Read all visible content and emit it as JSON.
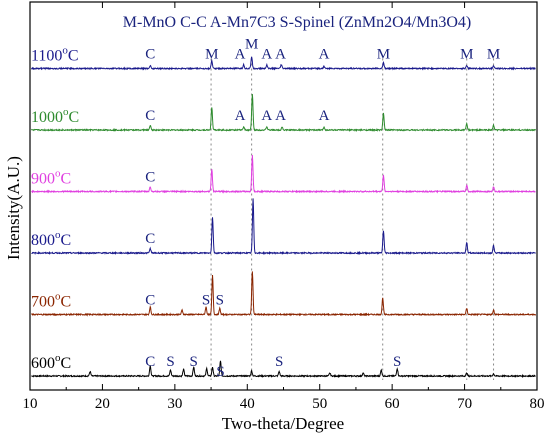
{
  "chart_data": {
    "type": "line",
    "title": "",
    "legend_text": "M-MnO  C-C  A-Mn7C3  S-Spinel (ZnMn2O4/Mn3O4)",
    "xlabel": "Two-theta/Degree",
    "ylabel": "Intensity(A.U.)",
    "xlim": [
      10,
      80
    ],
    "x_ticks": [
      10,
      20,
      30,
      40,
      50,
      60,
      70,
      80
    ],
    "y_ticks_shown": false,
    "grid": false,
    "legend_placement": "top",
    "guide_lines_x": [
      35.0,
      40.6,
      58.7,
      70.3,
      74.0
    ],
    "label_color": "#1a237e",
    "series": [
      {
        "name": "600oC",
        "temp_label": "600",
        "temp_unit_o": "o",
        "temp_unit_C": "C",
        "color": "#000000",
        "offset": 0,
        "peaks": [
          [
            18.3,
            6
          ],
          [
            26.6,
            14
          ],
          [
            29.4,
            8
          ],
          [
            31.2,
            9
          ],
          [
            32.6,
            12
          ],
          [
            34.4,
            10
          ],
          [
            35.2,
            12
          ],
          [
            36.3,
            20
          ],
          [
            40.6,
            7
          ],
          [
            44.4,
            6
          ],
          [
            51.4,
            4
          ],
          [
            56.0,
            4
          ],
          [
            58.5,
            8
          ],
          [
            60.7,
            10
          ],
          [
            70.3,
            4
          ],
          [
            74.0,
            3
          ]
        ],
        "annotations": [
          {
            "label": "C",
            "x": 26.6,
            "dy": 0
          },
          {
            "label": "S",
            "x": 29.4,
            "dy": 0
          },
          {
            "label": "S",
            "x": 32.6,
            "dy": 0
          },
          {
            "label": "S",
            "x": 36.3,
            "dy": 10
          },
          {
            "label": "S",
            "x": 44.4,
            "dy": 0
          },
          {
            "label": "S",
            "x": 60.7,
            "dy": 0
          }
        ]
      },
      {
        "name": "700oC",
        "temp_label": "700",
        "temp_unit_o": "o",
        "temp_unit_C": "C",
        "color": "#8b2500",
        "offset": 1,
        "peaks": [
          [
            26.6,
            10
          ],
          [
            31.0,
            6
          ],
          [
            34.3,
            10
          ],
          [
            35.2,
            52
          ],
          [
            36.2,
            8
          ],
          [
            40.7,
            58
          ],
          [
            58.7,
            22
          ],
          [
            70.3,
            8
          ],
          [
            74.0,
            6
          ]
        ],
        "annotations": [
          {
            "label": "C",
            "x": 26.6,
            "dy": 0
          },
          {
            "label": "S",
            "x": 34.3,
            "dy": 0
          },
          {
            "label": "S",
            "x": 36.2,
            "dy": 0
          }
        ]
      },
      {
        "name": "800oC",
        "temp_label": "800",
        "temp_unit_o": "o",
        "temp_unit_C": "C",
        "color": "#1a1a8c",
        "offset": 2,
        "peaks": [
          [
            26.6,
            6
          ],
          [
            35.2,
            48
          ],
          [
            40.8,
            72
          ],
          [
            58.8,
            30
          ],
          [
            70.3,
            14
          ],
          [
            74.0,
            10
          ]
        ],
        "annotations": [
          {
            "label": "C",
            "x": 26.6,
            "dy": 0
          }
        ]
      },
      {
        "name": "900oC",
        "temp_label": "900",
        "temp_unit_o": "o",
        "temp_unit_C": "C",
        "color": "#e040e0",
        "offset": 3,
        "peaks": [
          [
            26.6,
            6
          ],
          [
            35.1,
            30
          ],
          [
            40.7,
            48
          ],
          [
            58.8,
            22
          ],
          [
            70.3,
            8
          ],
          [
            74.0,
            6
          ]
        ],
        "annotations": [
          {
            "label": "C",
            "x": 26.6,
            "dy": 0
          }
        ]
      },
      {
        "name": "1000oC",
        "temp_label": "1000",
        "temp_unit_o": "o",
        "temp_unit_C": "C",
        "color": "#2e8b2e",
        "offset": 4,
        "peaks": [
          [
            26.6,
            6
          ],
          [
            35.1,
            30
          ],
          [
            39.5,
            4
          ],
          [
            40.7,
            48
          ],
          [
            42.7,
            4
          ],
          [
            44.8,
            4
          ],
          [
            50.6,
            4
          ],
          [
            58.8,
            22
          ],
          [
            70.3,
            8
          ],
          [
            74.0,
            6
          ]
        ],
        "annotations": [
          {
            "label": "C",
            "x": 26.6,
            "dy": 0
          },
          {
            "label": "A",
            "x": 39.0,
            "dy": 0
          },
          {
            "label": "A",
            "x": 42.7,
            "dy": 0
          },
          {
            "label": "A",
            "x": 44.6,
            "dy": 0
          },
          {
            "label": "A",
            "x": 50.6,
            "dy": 0
          }
        ]
      },
      {
        "name": "1100oC",
        "temp_label": "1100",
        "temp_unit_o": "o",
        "temp_unit_C": "C",
        "color": "#1a1a8c",
        "offset": 5,
        "peaks": [
          [
            26.6,
            4
          ],
          [
            35.1,
            10
          ],
          [
            39.5,
            5
          ],
          [
            40.6,
            16
          ],
          [
            42.7,
            5
          ],
          [
            44.7,
            5
          ],
          [
            50.6,
            3
          ],
          [
            58.8,
            8
          ],
          [
            70.3,
            4
          ],
          [
            74.0,
            4
          ]
        ],
        "annotations": [
          {
            "label": "C",
            "x": 26.6,
            "dy": 0
          },
          {
            "label": "M",
            "x": 35.1,
            "dy": 0
          },
          {
            "label": "A",
            "x": 39.0,
            "dy": 0
          },
          {
            "label": "M",
            "x": 40.6,
            "dy": -10
          },
          {
            "label": "A",
            "x": 42.7,
            "dy": 0
          },
          {
            "label": "A",
            "x": 44.6,
            "dy": 0
          },
          {
            "label": "A",
            "x": 50.6,
            "dy": 0
          },
          {
            "label": "M",
            "x": 58.8,
            "dy": 0
          },
          {
            "label": "M",
            "x": 70.3,
            "dy": 0
          },
          {
            "label": "M",
            "x": 74.0,
            "dy": 0
          }
        ]
      }
    ]
  }
}
